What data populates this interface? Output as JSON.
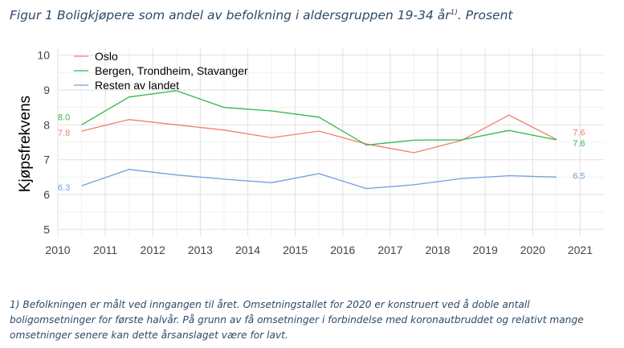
{
  "figure": {
    "title_main": "Figur 1 Boligkjøpere som andel av befolkning i aldersgruppen 19-34 år",
    "title_sup": "1)",
    "title_suffix": ". Prosent",
    "footnote": "1) Befolkningen er målt ved inngangen til året. Omsetningstallet for 2020 er konstruert ved å doble antall boligomsetninger for første halvår. På grunn av få omsetninger i forbindelse med koronautbruddet og relativt mange omsetninger senere kan dette årsanslaget være for lavt."
  },
  "chart_data": {
    "type": "line",
    "title": "",
    "xlabel": "",
    "ylabel": "Kjøpsfrekvens",
    "x_ticks": [
      "2010",
      "2011",
      "2012",
      "2013",
      "2014",
      "2015",
      "2016",
      "2017",
      "2018",
      "2019",
      "2020",
      "2021"
    ],
    "y_ticks": [
      "5",
      "6",
      "7",
      "8",
      "9",
      "10"
    ],
    "xlim": [
      2010,
      2021.5
    ],
    "ylim": [
      4.8,
      10.2
    ],
    "grid": true,
    "legend_position": "top-left",
    "series": [
      {
        "name": "Oslo",
        "color": "#f08070",
        "x": [
          2010.5,
          2011.5,
          2012.5,
          2013.5,
          2014.5,
          2015.5,
          2016.5,
          2017.5,
          2018.5,
          2019.5,
          2020.5
        ],
        "values": [
          7.82,
          8.15,
          8.0,
          7.85,
          7.63,
          7.82,
          7.45,
          7.2,
          7.55,
          8.28,
          7.58
        ],
        "start_label": "7.8",
        "end_label": "7.6"
      },
      {
        "name": "Bergen, Trondheim, Stavanger",
        "color": "#2fb84a",
        "x": [
          2010.5,
          2011.5,
          2012.5,
          2013.5,
          2014.5,
          2015.5,
          2016.5,
          2017.5,
          2018.5,
          2019.5,
          2020.5
        ],
        "values": [
          8.0,
          8.8,
          8.98,
          8.5,
          8.4,
          8.22,
          7.42,
          7.56,
          7.57,
          7.84,
          7.57
        ],
        "start_label": "8.0",
        "end_label": "7.6"
      },
      {
        "name": "Resten av landet",
        "color": "#6fa0dc",
        "x": [
          2010.5,
          2011.5,
          2012.5,
          2013.5,
          2014.5,
          2015.5,
          2016.5,
          2017.5,
          2018.5,
          2019.5,
          2020.5
        ],
        "values": [
          6.25,
          6.72,
          6.56,
          6.44,
          6.34,
          6.6,
          6.17,
          6.28,
          6.46,
          6.54,
          6.5
        ],
        "start_label": "6.3",
        "end_label": "6.5"
      }
    ]
  }
}
